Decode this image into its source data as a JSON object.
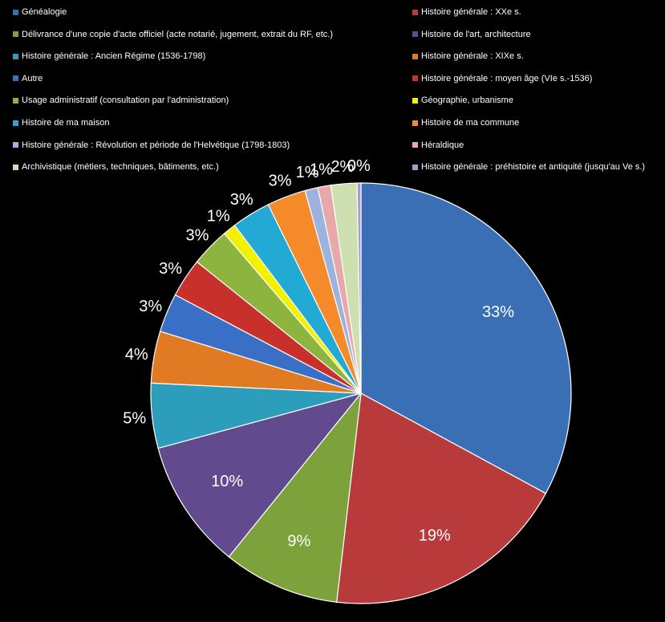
{
  "chart_data": {
    "type": "pie",
    "slices": [
      {
        "label": "Généalogie",
        "value": 33,
        "display": "33%",
        "color": "#3A6FB5"
      },
      {
        "label": "Histoire générale : XXe s.",
        "value": 19,
        "display": "19%",
        "color": "#B83A3A"
      },
      {
        "label": "Délivrance d'une copie d'acte officiel (acte notarié, jugement, extrait du RF, etc.)",
        "value": 9,
        "display": "9%",
        "color": "#7DA13B"
      },
      {
        "label": "Histoire de l'art, architecture",
        "value": 10,
        "display": "10%",
        "color": "#624A8E"
      },
      {
        "label": "Histoire générale : Ancien Régime (1536-1798)",
        "value": 5,
        "display": "5%",
        "color": "#2C9DBA"
      },
      {
        "label": "Histoire générale : XIXe s.",
        "value": 4,
        "display": "4%",
        "color": "#E07A23"
      },
      {
        "label": "Autre",
        "value": 3,
        "display": "3%",
        "color": "#3A6FC6"
      },
      {
        "label": "Histoire générale : moyen âge (VIe s.-1536)",
        "value": 3,
        "display": "3%",
        "color": "#C8302B"
      },
      {
        "label": "Usage administratif (consultation par l'administration)",
        "value": 3,
        "display": "3%",
        "color": "#8DB43E"
      },
      {
        "label": "Géographie, urbanisme",
        "value": 1,
        "display": "1%",
        "color": "#F2F200"
      },
      {
        "label": "Histoire de ma maison",
        "value": 3,
        "display": "3%",
        "color": "#22A9D4"
      },
      {
        "label": "Histoire de ma commune",
        "value": 3,
        "display": "3%",
        "color": "#F48A2A"
      },
      {
        "label": "Histoire générale : Révolution et période de l'Helvétique (1798-1803)",
        "value": 1,
        "display": "1%",
        "color": "#9CB3DE"
      },
      {
        "label": "Héraldique",
        "value": 1,
        "display": "1%",
        "color": "#E6A8A8"
      },
      {
        "label": "Archivistique (métiers, techniques, bâtiments, etc.)",
        "value": 2,
        "display": "2%",
        "color": "#CFE0B0"
      },
      {
        "label": "Histoire générale : préhistoire et antiquité (jusqu'au Ve s.)",
        "value": 0.3,
        "display": "0%",
        "color": "#A99CC8"
      }
    ],
    "legend_position": "top"
  }
}
